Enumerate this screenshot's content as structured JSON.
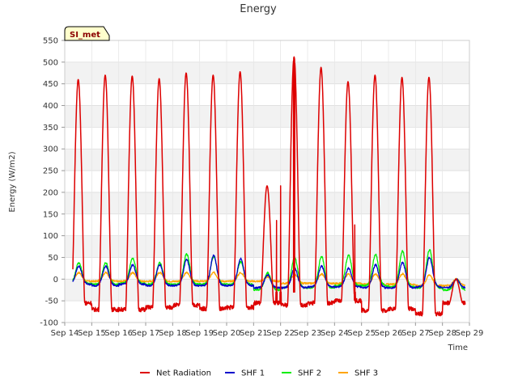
{
  "chart_data": {
    "type": "line",
    "title": "Energy",
    "xlabel": "Time",
    "ylabel": "Energy (W/m2)",
    "site_label": "SI_met",
    "ylim": [
      -100,
      550
    ],
    "yticks": [
      -100,
      -50,
      0,
      50,
      100,
      150,
      200,
      250,
      300,
      350,
      400,
      450,
      500,
      550
    ],
    "xlim": [
      14,
      29
    ],
    "x_ticks": [
      {
        "value": 14,
        "label": "Sep 14"
      },
      {
        "value": 15,
        "label": "Sep 15"
      },
      {
        "value": 16,
        "label": "Sep 16"
      },
      {
        "value": 17,
        "label": "Sep 17"
      },
      {
        "value": 18,
        "label": "Sep 18"
      },
      {
        "value": 19,
        "label": "Sep 19"
      },
      {
        "value": 20,
        "label": "Sep 20"
      },
      {
        "value": 21,
        "label": "Sep 21"
      },
      {
        "value": 22,
        "label": "Sep 22"
      },
      {
        "value": 23,
        "label": "Sep 23"
      },
      {
        "value": 24,
        "label": "Sep 24"
      },
      {
        "value": 25,
        "label": "Sep 25"
      },
      {
        "value": 26,
        "label": "Sep 26"
      },
      {
        "value": 27,
        "label": "Sep 27"
      },
      {
        "value": 28,
        "label": "Sep 28"
      },
      {
        "value": 29,
        "label": "Sep 29"
      }
    ],
    "x_start": 14.3,
    "x_end": 28.85,
    "series": [
      {
        "name": "Net Radiation",
        "color": "#dd0000",
        "days": [
          {
            "day": 14,
            "night": -55,
            "peak": 460
          },
          {
            "day": 15,
            "night": -70,
            "peak": 470
          },
          {
            "day": 16,
            "night": -70,
            "peak": 468
          },
          {
            "day": 17,
            "night": -65,
            "peak": 462
          },
          {
            "day": 18,
            "night": -60,
            "peak": 475
          },
          {
            "day": 19,
            "night": -68,
            "peak": 470
          },
          {
            "day": 20,
            "night": -65,
            "peak": 478
          },
          {
            "day": 21,
            "night": -55,
            "peak": 215
          },
          {
            "day": 22,
            "night": -60,
            "peak": 512
          },
          {
            "day": 23,
            "night": -55,
            "peak": 488
          },
          {
            "day": 24,
            "night": -50,
            "peak": 455
          },
          {
            "day": 25,
            "night": -72,
            "peak": 470
          },
          {
            "day": 26,
            "night": -68,
            "peak": 465
          },
          {
            "day": 27,
            "night": -80,
            "peak": 465
          },
          {
            "day": 28,
            "night": -55,
            "peak": 0
          }
        ]
      },
      {
        "name": "SHF 1",
        "color": "#0000cc",
        "days": [
          {
            "day": 14,
            "night": -12,
            "peak": 30
          },
          {
            "day": 15,
            "night": -15,
            "peak": 30
          },
          {
            "day": 16,
            "night": -12,
            "peak": 33
          },
          {
            "day": 17,
            "night": -15,
            "peak": 33
          },
          {
            "day": 18,
            "night": -15,
            "peak": 45
          },
          {
            "day": 19,
            "night": -15,
            "peak": 55
          },
          {
            "day": 20,
            "night": -15,
            "peak": 47
          },
          {
            "day": 21,
            "night": -20,
            "peak": 10
          },
          {
            "day": 22,
            "night": -20,
            "peak": 25
          },
          {
            "day": 23,
            "night": -18,
            "peak": 30
          },
          {
            "day": 24,
            "night": -18,
            "peak": 25
          },
          {
            "day": 25,
            "night": -20,
            "peak": 33
          },
          {
            "day": 26,
            "night": -20,
            "peak": 38
          },
          {
            "day": 27,
            "night": -18,
            "peak": 50
          },
          {
            "day": 28,
            "night": -20,
            "peak": 0
          }
        ]
      },
      {
        "name": "SHF 2",
        "color": "#00ee00",
        "days": [
          {
            "day": 14,
            "night": -10,
            "peak": 38
          },
          {
            "day": 15,
            "night": -12,
            "peak": 38
          },
          {
            "day": 16,
            "night": -10,
            "peak": 48
          },
          {
            "day": 17,
            "night": -12,
            "peak": 38
          },
          {
            "day": 18,
            "night": -12,
            "peak": 58
          },
          {
            "day": 19,
            "night": -12,
            "peak": 52
          },
          {
            "day": 20,
            "night": -12,
            "peak": 40
          },
          {
            "day": 21,
            "night": -25,
            "peak": 15
          },
          {
            "day": 22,
            "night": -20,
            "peak": 50
          },
          {
            "day": 23,
            "night": -20,
            "peak": 52
          },
          {
            "day": 24,
            "night": -15,
            "peak": 55
          },
          {
            "day": 25,
            "night": -15,
            "peak": 57
          },
          {
            "day": 26,
            "night": -18,
            "peak": 65
          },
          {
            "day": 27,
            "night": -20,
            "peak": 68
          },
          {
            "day": 28,
            "night": -25,
            "peak": 0
          }
        ]
      },
      {
        "name": "SHF 3",
        "color": "#ffa500",
        "days": [
          {
            "day": 14,
            "night": -5,
            "peak": 15
          },
          {
            "day": 15,
            "night": -5,
            "peak": 15
          },
          {
            "day": 16,
            "night": -5,
            "peak": 15
          },
          {
            "day": 17,
            "night": -5,
            "peak": 15
          },
          {
            "day": 18,
            "night": -5,
            "peak": 15
          },
          {
            "day": 19,
            "night": -5,
            "peak": 15
          },
          {
            "day": 20,
            "night": -5,
            "peak": 15
          },
          {
            "day": 21,
            "night": -5,
            "peak": 5
          },
          {
            "day": 22,
            "night": -10,
            "peak": 10
          },
          {
            "day": 23,
            "night": -10,
            "peak": 12
          },
          {
            "day": 24,
            "night": -10,
            "peak": 12
          },
          {
            "day": 25,
            "night": -12,
            "peak": 12
          },
          {
            "day": 26,
            "night": -12,
            "peak": 12
          },
          {
            "day": 27,
            "night": -15,
            "peak": 10
          },
          {
            "day": 28,
            "night": -15,
            "peak": 0
          }
        ]
      }
    ],
    "spikes": [
      {
        "series": "Net Radiation",
        "x": 21.85,
        "y": 135
      },
      {
        "series": "Net Radiation",
        "x": 22.0,
        "y": 215
      },
      {
        "series": "Net Radiation",
        "x": 24.75,
        "y": 125
      },
      {
        "series": "Net Radiation",
        "x": 22.5,
        "y": 225
      }
    ],
    "legend": [
      {
        "label": "Net Radiation",
        "color": "#dd0000"
      },
      {
        "label": "SHF 1",
        "color": "#0000cc"
      },
      {
        "label": "SHF 2",
        "color": "#00ee00"
      },
      {
        "label": "SHF 3",
        "color": "#ffa500"
      }
    ]
  }
}
